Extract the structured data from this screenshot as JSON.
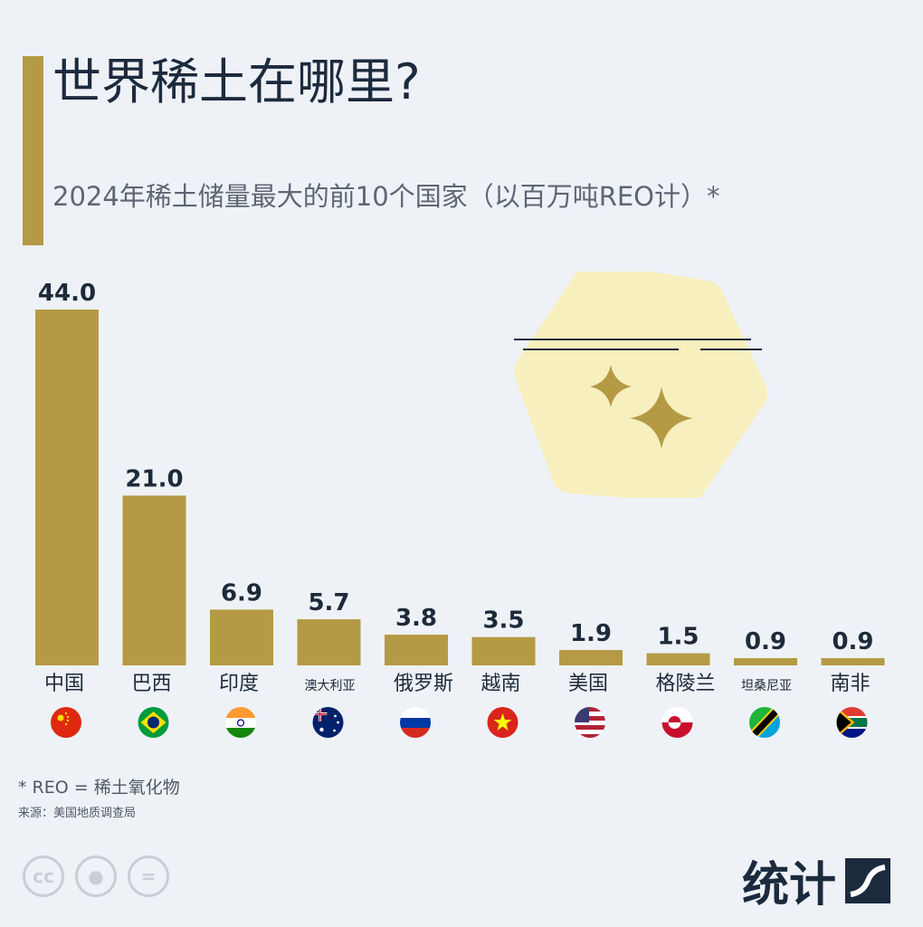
{
  "header": {
    "title": "世界稀土在哪里?",
    "subtitle": "2024年稀土储量最大的前10个国家（以百万吨REO计）*"
  },
  "chart_data": {
    "type": "bar",
    "title": "世界稀土在哪里?",
    "subtitle": "2024年稀土储量最大的前10个国家（以百万吨REO计）*",
    "categories": [
      "中国",
      "巴西",
      "印度",
      "澳大利亚",
      "俄罗斯",
      "越南",
      "美国",
      "格陵兰",
      "坦桑尼亚",
      "南非"
    ],
    "values": [
      44.0,
      21.0,
      6.9,
      5.7,
      3.8,
      3.5,
      1.9,
      1.5,
      0.9,
      0.9
    ],
    "value_labels": [
      "44.0",
      "21.0",
      "6.9",
      "5.7",
      "3.8",
      "3.5",
      "1.9",
      "1.5",
      "0.9",
      "0.9"
    ],
    "ylim": [
      0,
      44
    ],
    "grid": false,
    "bar_color": "#b59a45"
  },
  "flags": [
    "china-flag-icon",
    "brazil-flag-icon",
    "india-flag-icon",
    "australia-flag-icon",
    "russia-flag-icon",
    "vietnam-flag-icon",
    "usa-flag-icon",
    "greenland-flag-icon",
    "tanzania-flag-icon",
    "south-africa-flag-icon"
  ],
  "footer": {
    "footnote": "* REO = 稀土氧化物",
    "source": "来源：美国地质调查局",
    "brand": "统计",
    "license_icons": [
      "cc-icon",
      "attribution-icon",
      "no-derivatives-icon"
    ]
  },
  "colors": {
    "accent": "#b59a45",
    "text": "#1c2a3e",
    "background": "#eef2f7"
  }
}
